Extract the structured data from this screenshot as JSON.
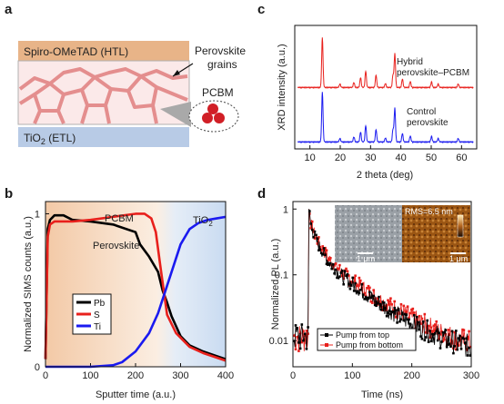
{
  "figure": {
    "panel_labels": {
      "a": "a",
      "b": "b",
      "c": "c",
      "d": "d"
    }
  },
  "panel_a": {
    "htl_label": "Spiro-OMeTAD (HTL)",
    "grains_label_line1": "Perovskite",
    "grains_label_line2": "grains",
    "pcbm_label": "PCBM",
    "etl_label_main": "TiO",
    "etl_label_sub": "2",
    "etl_label_rest": " (ETL)",
    "colors": {
      "htl": "#e8b488",
      "etl": "#b8cbe6",
      "grain": "#e07f7f",
      "pcbm": "#d11f26"
    }
  },
  "panel_c": {
    "ylabel": "XRD intensity (a.u.)",
    "xlabel": "2 theta (deg)",
    "xticks": [
      "10",
      "20",
      "30",
      "40",
      "50",
      "60"
    ],
    "hybrid_label_line1": "Hybrid",
    "hybrid_label_line2": "perovskite–PCBM",
    "control_label_line1": "Control",
    "control_label_line2": "perovskite"
  },
  "panel_d": {
    "ylabel": "Normalized PL (a.u.)",
    "xlabel": "Time (ns)",
    "inset_rms": "RMS=6.5 nm",
    "inset_scale_left": "1 μm",
    "inset_scale_right": "1 μm"
  },
  "chart_data": [
    {
      "id": "panel-b",
      "type": "line",
      "xlabel": "Sputter time (a.u.)",
      "ylabel": "Normalized SIMS counts (a.u.)",
      "xlim": [
        0,
        400
      ],
      "ylim": [
        0,
        1.08
      ],
      "xticks": [
        "0",
        "100",
        "200",
        "300",
        "400"
      ],
      "yticks": [
        "0",
        "1"
      ],
      "annotations": {
        "pcbm": "PCBM",
        "perovskite": "Perovskite",
        "tio2_main": "TiO",
        "tio2_sub": "2"
      },
      "legend": "inside-left",
      "series": [
        {
          "name": "Pb",
          "color": "#000000",
          "x": [
            0,
            5,
            10,
            20,
            40,
            60,
            100,
            150,
            200,
            210,
            230,
            250,
            260,
            270,
            280,
            300,
            320,
            350,
            380,
            400
          ],
          "y": [
            0.05,
            0.9,
            0.96,
            0.99,
            0.99,
            0.96,
            0.95,
            0.93,
            0.88,
            0.8,
            0.72,
            0.62,
            0.5,
            0.42,
            0.33,
            0.2,
            0.14,
            0.1,
            0.07,
            0.05
          ]
        },
        {
          "name": "S",
          "color": "#e8201c",
          "x": [
            0,
            5,
            10,
            20,
            40,
            60,
            100,
            150,
            200,
            220,
            235,
            245,
            255,
            270,
            290,
            320,
            350,
            380,
            400
          ],
          "y": [
            0.05,
            0.85,
            0.93,
            0.95,
            0.95,
            0.95,
            0.96,
            0.98,
            1.0,
            1.0,
            0.97,
            0.88,
            0.66,
            0.34,
            0.22,
            0.13,
            0.09,
            0.06,
            0.04
          ]
        },
        {
          "name": "Ti",
          "color": "#1a1af0",
          "x": [
            0,
            100,
            150,
            170,
            200,
            230,
            250,
            270,
            300,
            320,
            340,
            360,
            380,
            400
          ],
          "y": [
            0.0,
            0.0,
            0.01,
            0.03,
            0.1,
            0.22,
            0.35,
            0.53,
            0.8,
            0.9,
            0.94,
            0.96,
            0.97,
            0.98
          ]
        }
      ],
      "background": {
        "left": "#f3c9a6",
        "right": "#c9dbf1"
      }
    },
    {
      "id": "panel-d",
      "type": "scatter",
      "xlabel": "Time (ns)",
      "ylabel": "Normalized PL (a.u.)",
      "xlim": [
        0,
        300
      ],
      "ylim": [
        0.004,
        1.3
      ],
      "yscale": "log",
      "xticks": [
        "0",
        "100",
        "200",
        "300"
      ],
      "yticks": [
        "0.01",
        "0.1",
        "1"
      ],
      "legend": "bottom-left",
      "series": [
        {
          "name": "Pump from top",
          "color": "#000000",
          "x": [
            27,
            30,
            35,
            40,
            50,
            60,
            80,
            100,
            130,
            160,
            200,
            250,
            300
          ],
          "y": [
            1.0,
            0.6,
            0.42,
            0.32,
            0.22,
            0.16,
            0.1,
            0.072,
            0.045,
            0.03,
            0.018,
            0.011,
            0.008
          ]
        },
        {
          "name": "Pump from bottom",
          "color": "#e8201c",
          "x": [
            27,
            30,
            35,
            40,
            50,
            60,
            80,
            100,
            130,
            160,
            200,
            250,
            300
          ],
          "y": [
            1.0,
            0.62,
            0.45,
            0.34,
            0.24,
            0.18,
            0.115,
            0.082,
            0.052,
            0.035,
            0.022,
            0.013,
            0.009
          ]
        }
      ]
    }
  ]
}
